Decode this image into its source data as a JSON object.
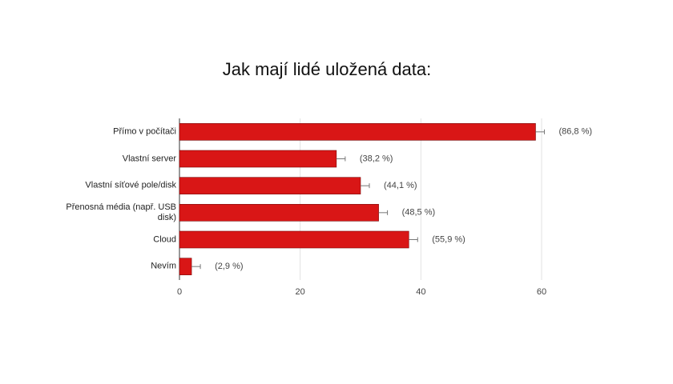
{
  "chart_data": {
    "type": "bar",
    "orientation": "horizontal",
    "title": "Jak mají lidé uložená data:",
    "categories": [
      "Přímo v počítači",
      "Vlastní server",
      "Vlastní síťové pole/disk",
      "Přenosná média (např. USB disk)",
      "Cloud",
      "Nevím"
    ],
    "values": [
      59,
      26,
      30,
      33,
      38,
      2
    ],
    "bar_labels": [
      "(86,8 %)",
      "(38,2 %)",
      "(44,1 %)",
      "(48,5 %)",
      "(55,9 %)",
      "(2,9 %)"
    ],
    "color": "#d91616",
    "xlim": [
      0,
      60
    ],
    "xticks": [
      0,
      20,
      40,
      60
    ],
    "grid": true
  }
}
